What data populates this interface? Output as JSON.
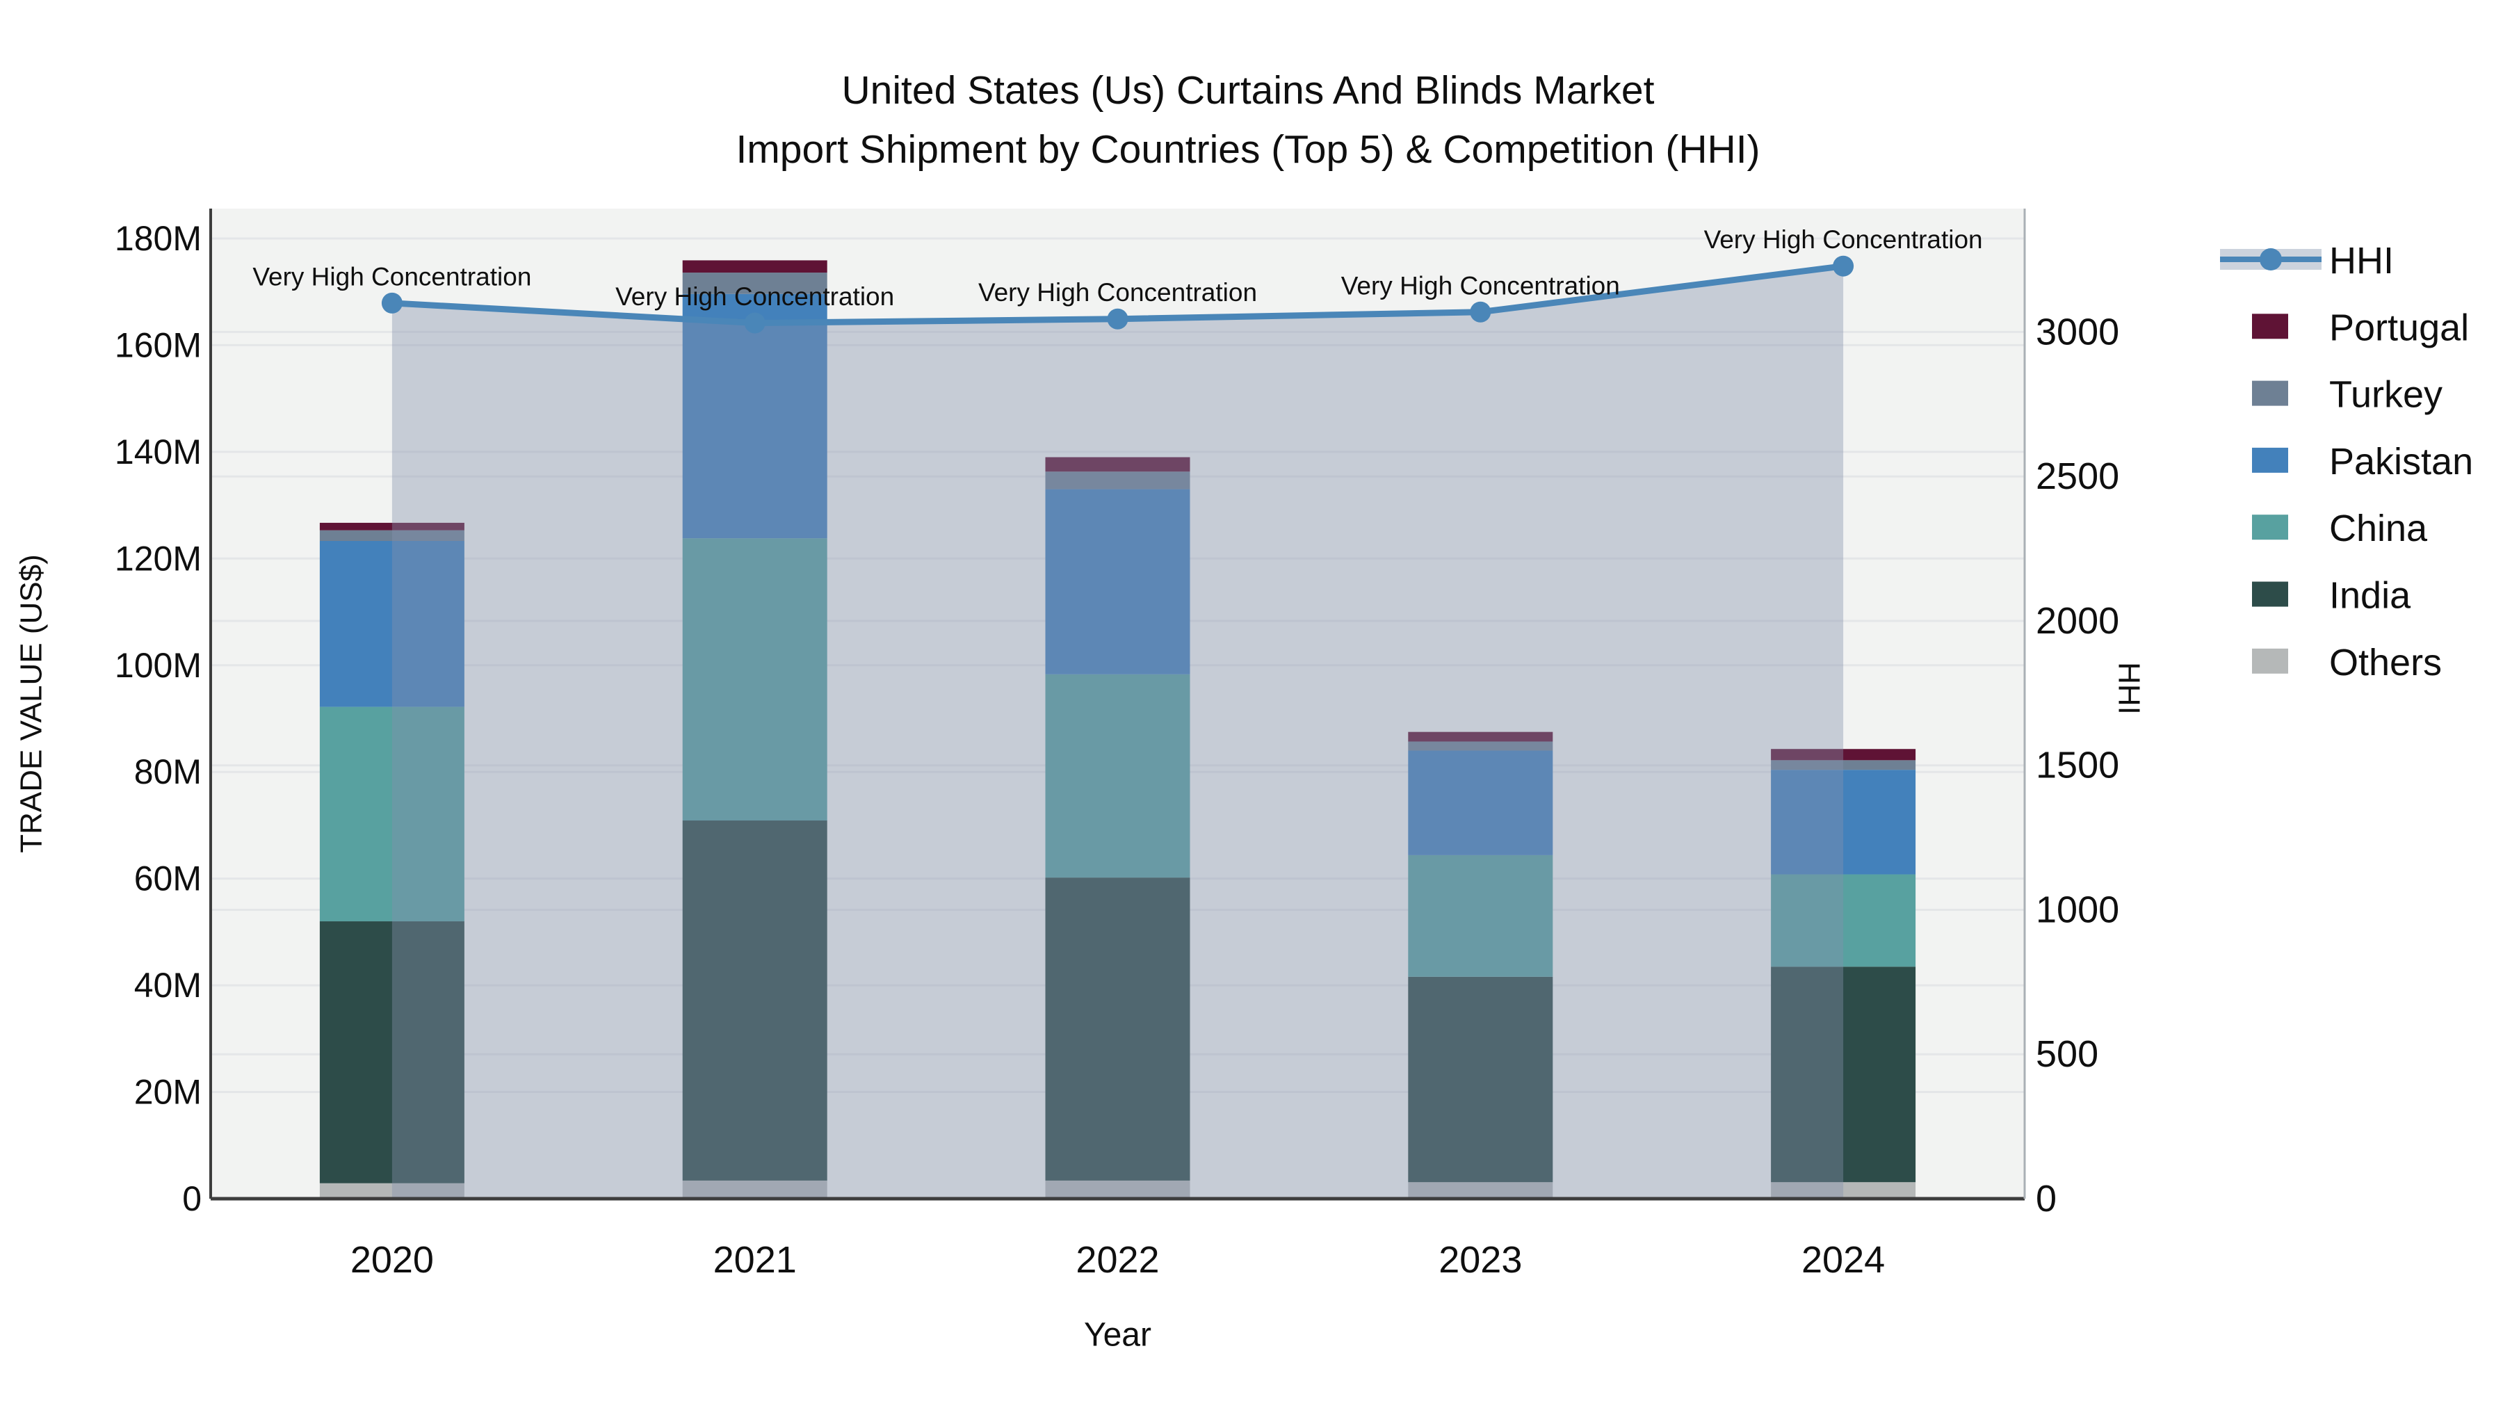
{
  "chart_data": {
    "type": "stacked-bar+line",
    "title_line1": "United States (Us) Curtains And Blinds Market",
    "title_line2": "Import Shipment by Countries (Top 5) & Competition (HHI)",
    "categories": [
      "2020",
      "2021",
      "2022",
      "2023",
      "2024"
    ],
    "unit": "M US$",
    "xlabel": "Year",
    "ylabel_left": "TRADE VALUE (US$)",
    "ylabel_right": "HHI",
    "annotation_text": "Very High Concentration",
    "series": [
      {
        "name": "Others",
        "color": "#b5b8b8",
        "values": [
          2.9,
          3.4,
          3.4,
          3.1,
          3.1
        ]
      },
      {
        "name": "India",
        "color": "#2d4c49",
        "values": [
          49.1,
          67.5,
          56.8,
          38.5,
          40.4
        ]
      },
      {
        "name": "China",
        "color": "#58a1a0",
        "values": [
          40.2,
          52.9,
          38.1,
          22.8,
          17.3
        ]
      },
      {
        "name": "Pakistan",
        "color": "#4381bb",
        "values": [
          31.1,
          45.8,
          34.7,
          19.6,
          19.6
        ]
      },
      {
        "name": "Turkey",
        "color": "#6e8094",
        "values": [
          2.0,
          4.0,
          3.3,
          1.7,
          1.8
        ]
      },
      {
        "name": "Portugal",
        "color": "#5f1335",
        "values": [
          1.4,
          2.3,
          2.7,
          1.8,
          2.1
        ]
      }
    ],
    "totals": [
      126.7,
      175.9,
      139.0,
      87.5,
      84.3
    ],
    "line": {
      "name": "HHI",
      "color": "#4a86b8",
      "band_fill": "rgba(133,145,173,0.40)",
      "legend_band_fill": "#ccd3dd",
      "values": [
        3100,
        3031,
        3045,
        3069,
        3228
      ]
    },
    "y_left_ticks": [
      {
        "v": 0,
        "label": "0"
      },
      {
        "v": 20,
        "label": "20M"
      },
      {
        "v": 40,
        "label": "40M"
      },
      {
        "v": 60,
        "label": "60M"
      },
      {
        "v": 80,
        "label": "80M"
      },
      {
        "v": 100,
        "label": "100M"
      },
      {
        "v": 120,
        "label": "120M"
      },
      {
        "v": 140,
        "label": "140M"
      },
      {
        "v": 160,
        "label": "160M"
      },
      {
        "v": 180,
        "label": "180M"
      }
    ],
    "y_right_ticks": [
      "0",
      "500",
      "1000",
      "1500",
      "2000",
      "2500",
      "3000"
    ],
    "y_left_max": 185.6,
    "y_right_max": 3427,
    "legend": [
      {
        "label": "HHI",
        "type": "line",
        "color": "#4a86b8"
      },
      {
        "label": "Portugal",
        "type": "swatch",
        "color": "#5f1335"
      },
      {
        "label": "Turkey",
        "type": "swatch",
        "color": "#6e8094"
      },
      {
        "label": "Pakistan",
        "type": "swatch",
        "color": "#4381bb"
      },
      {
        "label": "China",
        "type": "swatch",
        "color": "#58a1a0"
      },
      {
        "label": "India",
        "type": "swatch",
        "color": "#2d4c49"
      },
      {
        "label": "Others",
        "type": "swatch",
        "color": "#b5b8b8"
      }
    ],
    "colors": {
      "plot_bg": "#f2f3f2",
      "gridline": "#e4e6e8",
      "spine_dark": "#3d3d3d",
      "spine_right": "#aab0b5",
      "text": "#0f0f0f"
    }
  }
}
